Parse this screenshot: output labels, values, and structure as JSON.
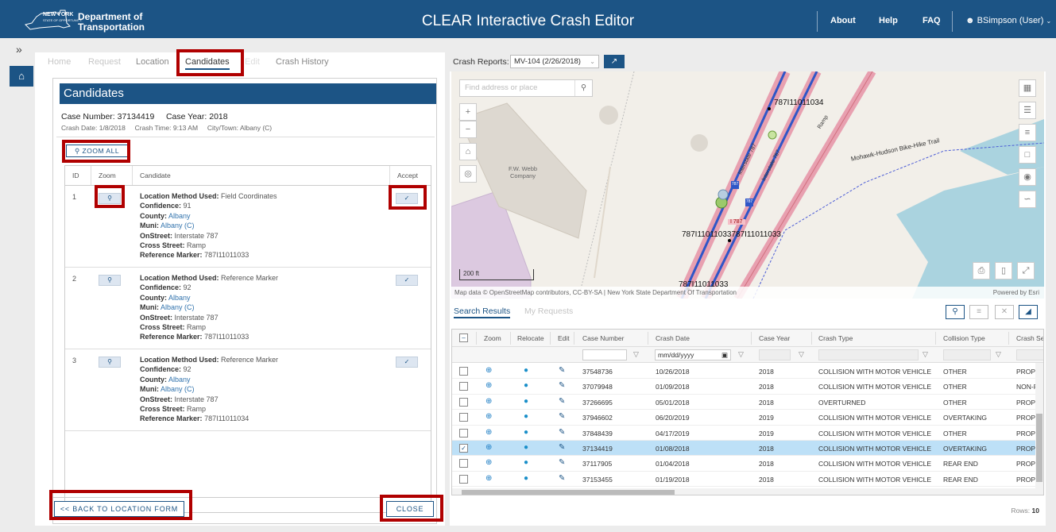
{
  "header": {
    "state_name": "NEW YORK",
    "state_sub": "STATE OF OPPORTUNITY.",
    "dept_line1": "Department of",
    "dept_line2": "Transportation",
    "app_title": "CLEAR Interactive Crash Editor",
    "nav": [
      "About",
      "Help",
      "FAQ"
    ],
    "user": "BSimpson (User)",
    "brand_color": "#1c5485"
  },
  "tabs": [
    "Home",
    "Request",
    "Location",
    "Candidates",
    "Edit",
    "Crash History"
  ],
  "active_tab": "Candidates",
  "candidates": {
    "title": "Candidates",
    "case_number_label": "Case Number:",
    "case_number": "37134419",
    "case_year_label": "Case Year:",
    "case_year": "2018",
    "crash_date_label": "Crash Date:",
    "crash_date": "1/8/2018",
    "crash_time_label": "Crash Time:",
    "crash_time": "9:13 AM",
    "city_label": "City/Town:",
    "city": "Albany (C)",
    "zoom_all": "ZOOM ALL",
    "columns": [
      "ID",
      "Zoom",
      "Candidate",
      "Accept"
    ],
    "field_labels": {
      "method": "Location Method Used:",
      "confidence": "Confidence:",
      "county": "County:",
      "muni": "Muni:",
      "onstreet": "OnStreet:",
      "cross": "Cross Street:",
      "refmarker": "Reference Marker:"
    },
    "rows": [
      {
        "id": "1",
        "method": "Field Coordinates",
        "confidence": "91",
        "county": "Albany",
        "muni": "Albany (C)",
        "onstreet": "Interstate 787",
        "cross": "Ramp",
        "refmarker": "787I11011033"
      },
      {
        "id": "2",
        "method": "Reference Marker",
        "confidence": "92",
        "county": "Albany",
        "muni": "Albany (C)",
        "onstreet": "Interstate 787",
        "cross": "Ramp",
        "refmarker": "787I11011033"
      },
      {
        "id": "3",
        "method": "Reference Marker",
        "confidence": "92",
        "county": "Albany",
        "muni": "Albany (C)",
        "onstreet": "Interstate 787",
        "cross": "Ramp",
        "refmarker": "787I11011034"
      }
    ],
    "back_button": "<< BACK TO LOCATION FORM",
    "close_button": "CLOSE"
  },
  "crash_reports": {
    "label": "Crash Reports:",
    "selected": "MV-104 (2/26/2018)"
  },
  "map": {
    "search_placeholder": "Find address or place",
    "labels": {
      "marker_top": "787I11011034",
      "marker_mid": "787I11011033787I11011033",
      "marker_bottom": "787I11011033",
      "trail": "Mohawk-Hudson Bike-Hike Trail",
      "place": "F.W. Webb Company",
      "ramp": "Ramp",
      "interstate_a": "Interstate 787",
      "interstate_b": "Interstate 787",
      "shield": "787",
      "rm_tag": "I 787"
    },
    "scale": "200 ft",
    "attribution": "Map data © OpenStreetMap contributors, CC-BY-SA | New York State Department Of Transportation",
    "powered": "Powered by Esri"
  },
  "results": {
    "tabs": [
      "Search Results",
      "My Requests"
    ],
    "columns": [
      "Zoom",
      "Relocate",
      "Edit",
      "Case Number",
      "Crash Date",
      "Case Year",
      "Crash Type",
      "Collision Type",
      "Crash Sev"
    ],
    "date_placeholder": "mm/dd/yyyy",
    "rows": [
      {
        "case": "37548736",
        "date": "10/26/2018",
        "year": "2018",
        "type": "COLLISION WITH MOTOR VEHICLE",
        "collision": "OTHER",
        "sev": "PROPE",
        "selected": false
      },
      {
        "case": "37079948",
        "date": "01/09/2018",
        "year": "2018",
        "type": "COLLISION WITH MOTOR VEHICLE",
        "collision": "OTHER",
        "sev": "NON-F",
        "selected": false
      },
      {
        "case": "37266695",
        "date": "05/01/2018",
        "year": "2018",
        "type": "OVERTURNED",
        "collision": "OTHER",
        "sev": "PROPE",
        "selected": false
      },
      {
        "case": "37946602",
        "date": "06/20/2019",
        "year": "2019",
        "type": "COLLISION WITH MOTOR VEHICLE",
        "collision": "OVERTAKING",
        "sev": "PROPE",
        "selected": false
      },
      {
        "case": "37848439",
        "date": "04/17/2019",
        "year": "2019",
        "type": "COLLISION WITH MOTOR VEHICLE",
        "collision": "OTHER",
        "sev": "PROPE",
        "selected": false
      },
      {
        "case": "37134419",
        "date": "01/08/2018",
        "year": "2018",
        "type": "COLLISION WITH MOTOR VEHICLE",
        "collision": "OVERTAKING",
        "sev": "PROPE",
        "selected": true
      },
      {
        "case": "37117905",
        "date": "01/04/2018",
        "year": "2018",
        "type": "COLLISION WITH MOTOR VEHICLE",
        "collision": "REAR END",
        "sev": "PROPE",
        "selected": false
      },
      {
        "case": "37153455",
        "date": "01/19/2018",
        "year": "2018",
        "type": "COLLISION WITH MOTOR VEHICLE",
        "collision": "REAR END",
        "sev": "PROPE",
        "selected": false
      }
    ],
    "rows_label": "Rows:",
    "rows_value": "10"
  }
}
